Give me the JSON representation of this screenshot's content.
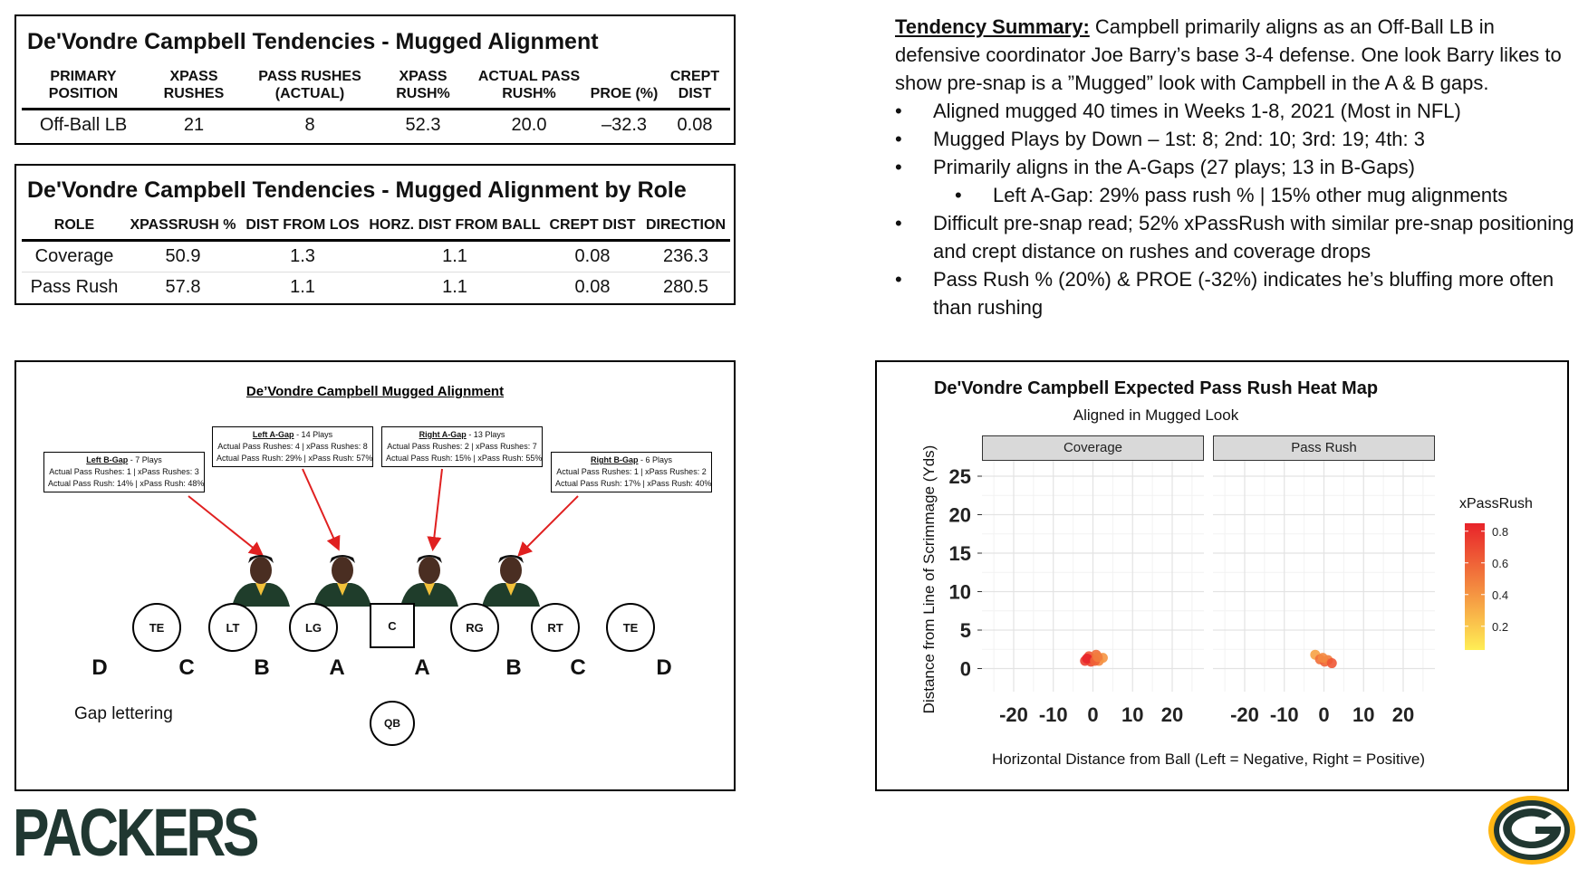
{
  "table1": {
    "title": "De'Vondre Campbell Tendencies - Mugged Alignment",
    "headers": [
      "PRIMARY POSITION",
      "XPASS RUSHES",
      "PASS RUSHES (ACTUAL)",
      "XPASS RUSH%",
      "ACTUAL PASS RUSH%",
      "PROE (%)",
      "CREPT DIST"
    ],
    "row": [
      "Off-Ball LB",
      "21",
      "8",
      "52.3",
      "20.0",
      "–32.3",
      "0.08"
    ]
  },
  "table2": {
    "title": "De'Vondre Campbell Tendencies - Mugged Alignment by Role",
    "headers": [
      "ROLE",
      "XPASSRUSH %",
      "DIST FROM LOS",
      "HORZ. DIST FROM BALL",
      "CREPT DIST",
      "DIRECTION"
    ],
    "rows": [
      [
        "Coverage",
        "50.9",
        "1.3",
        "1.1",
        "0.08",
        "236.3"
      ],
      [
        "Pass Rush",
        "57.8",
        "1.1",
        "1.1",
        "0.08",
        "280.5"
      ]
    ]
  },
  "summary": {
    "lead": "Tendency Summary:",
    "intro": " Campbell primarily aligns as an Off-Ball LB in defensive coordinator Joe Barry’s base 3-4 defense. One look Barry likes to show pre-snap is a ”Mugged” look with Campbell in the A & B gaps.",
    "bullet_glyph": "•",
    "bullets": [
      "Aligned mugged 40 times in Weeks 1-8, 2021 (Most in NFL)",
      "Mugged Plays by Down – 1st: 8; 2nd: 10; 3rd: 19; 4th: 3",
      "Primarily aligns in the A-Gaps (27 plays; 13 in B-Gaps)",
      "Left A-Gap: 29% pass rush % | 15% other mug alignments",
      "Difficult pre-snap read; 52% xPassRush with similar pre-snap positioning and crept distance on rushes and coverage drops",
      "Pass Rush % (20%) & PROE (-32%) indicates he’s bluffing more often than rushing"
    ]
  },
  "diagram": {
    "title": "De’Vondre Campbell Mugged Alignment",
    "gap_boxes": [
      {
        "header": "Left B-Gap",
        "plays": " - 7 Plays",
        "line1": "Actual Pass Rushes: 1 | xPass Rushes: 3",
        "line2": "Actual Pass Rush: 14% | xPass Rush: 48%"
      },
      {
        "header": "Left A-Gap",
        "plays": " - 14 Plays",
        "line1": "Actual Pass Rushes: 4 | xPass Rushes: 8",
        "line2": "Actual Pass Rush: 29% | xPass Rush: 57%"
      },
      {
        "header": "Right A-Gap",
        "plays": " - 13 Plays",
        "line1": "Actual Pass Rushes: 2 | xPass Rushes: 7",
        "line2": "Actual Pass Rush: 15% | xPass Rush: 55%"
      },
      {
        "header": "Right B-Gap",
        "plays": " - 6 Plays",
        "line1": "Actual Pass Rushes: 1 | xPass Rushes: 2",
        "line2": "Actual Pass Rush: 17% | xPass Rush: 40%"
      }
    ],
    "linemen": [
      "TE",
      "LT",
      "LG",
      "C",
      "RG",
      "RT",
      "TE"
    ],
    "qb": "QB",
    "gap_letters": [
      "D",
      "C",
      "B",
      "A",
      "A",
      "B",
      "C",
      "D"
    ],
    "gap_lettering_label": "Gap lettering"
  },
  "brand": {
    "wordmark": "PACKERS",
    "green": "#203731",
    "gold": "#FFB612"
  },
  "chart_data": {
    "type": "scatter",
    "title": "De'Vondre Campbell Expected Pass Rush Heat Map",
    "subtitle": "Aligned in Mugged Look",
    "xlabel": "Horizontal Distance from Ball (Left = Negative, Right = Positive)",
    "ylabel": "Distance from Line of Scrimmage (Yds)",
    "xlim": [
      -28,
      28
    ],
    "ylim": [
      -3,
      27
    ],
    "x_ticks": [
      -20,
      -10,
      0,
      10,
      20
    ],
    "y_ticks": [
      0,
      5,
      10,
      15,
      20,
      25
    ],
    "grid": true,
    "legend_title": "xPassRush",
    "legend_ticks": [
      0.2,
      0.4,
      0.6,
      0.8
    ],
    "legend_placement": "right",
    "color_low": "#FFEE55",
    "color_high": "#E8232A",
    "facets": [
      {
        "name": "Coverage",
        "points": [
          {
            "x": -2.0,
            "y": 1.0,
            "v": 0.75
          },
          {
            "x": -1.0,
            "y": 1.6,
            "v": 0.65
          },
          {
            "x": 0.0,
            "y": 1.2,
            "v": 0.8
          },
          {
            "x": 0.8,
            "y": 1.8,
            "v": 0.55
          },
          {
            "x": 1.5,
            "y": 1.0,
            "v": 0.45
          },
          {
            "x": -0.5,
            "y": 0.9,
            "v": 0.7
          },
          {
            "x": 2.5,
            "y": 1.4,
            "v": 0.4
          },
          {
            "x": -1.5,
            "y": 1.3,
            "v": 0.85
          },
          {
            "x": 0.5,
            "y": 1.0,
            "v": 0.6
          },
          {
            "x": 1.2,
            "y": 1.5,
            "v": 0.5
          }
        ]
      },
      {
        "name": "Pass Rush",
        "points": [
          {
            "x": -2.2,
            "y": 1.8,
            "v": 0.35
          },
          {
            "x": -1.0,
            "y": 1.2,
            "v": 0.55
          },
          {
            "x": 0.2,
            "y": 0.9,
            "v": 0.6
          },
          {
            "x": 1.0,
            "y": 1.1,
            "v": 0.5
          },
          {
            "x": 2.0,
            "y": 0.7,
            "v": 0.65
          },
          {
            "x": -0.3,
            "y": 1.4,
            "v": 0.45
          }
        ]
      }
    ]
  }
}
